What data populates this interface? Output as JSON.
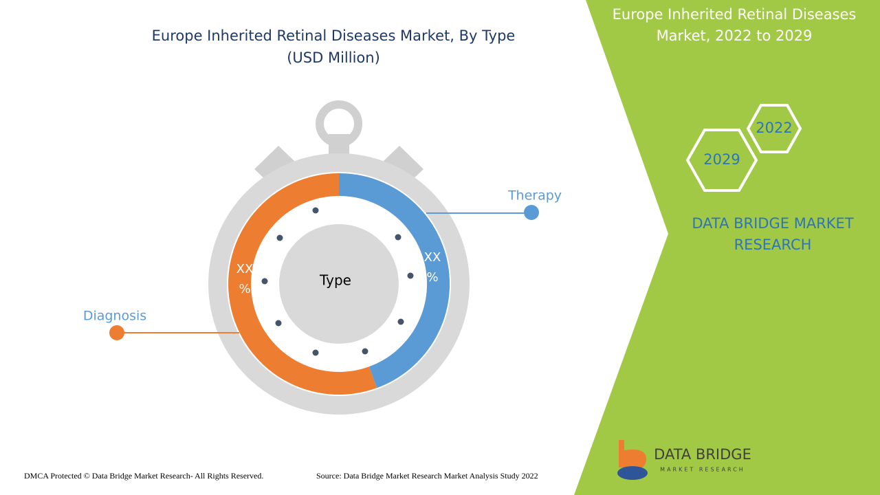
{
  "header": {
    "title_line1": "Europe Inherited Retinal Diseases Market, By Type",
    "title_line2": "(USD Million)"
  },
  "diagram": {
    "center_label": "Type",
    "segments": [
      {
        "name": "Therapy",
        "label_line1": "XX",
        "label_line2": "%"
      },
      {
        "name": "Diagnosis",
        "label_line1": "XX",
        "label_line2": "%"
      }
    ]
  },
  "side_panel": {
    "title_line1": "Europe Inherited Retinal Diseases",
    "title_line2": "Market, 2022 to 2029",
    "year_start": "2022",
    "year_end": "2029",
    "brand_line1": "DATA BRIDGE MARKET",
    "brand_line2": "RESEARCH"
  },
  "logo": {
    "name": "DATA BRIDGE",
    "tagline": "MARKET RESEARCH"
  },
  "footer": {
    "copyright": "DMCA Protected © Data Bridge Market Research- All Rights Reserved.",
    "source": "Source: Data Bridge Market Research Market Analysis Study 2022"
  }
}
